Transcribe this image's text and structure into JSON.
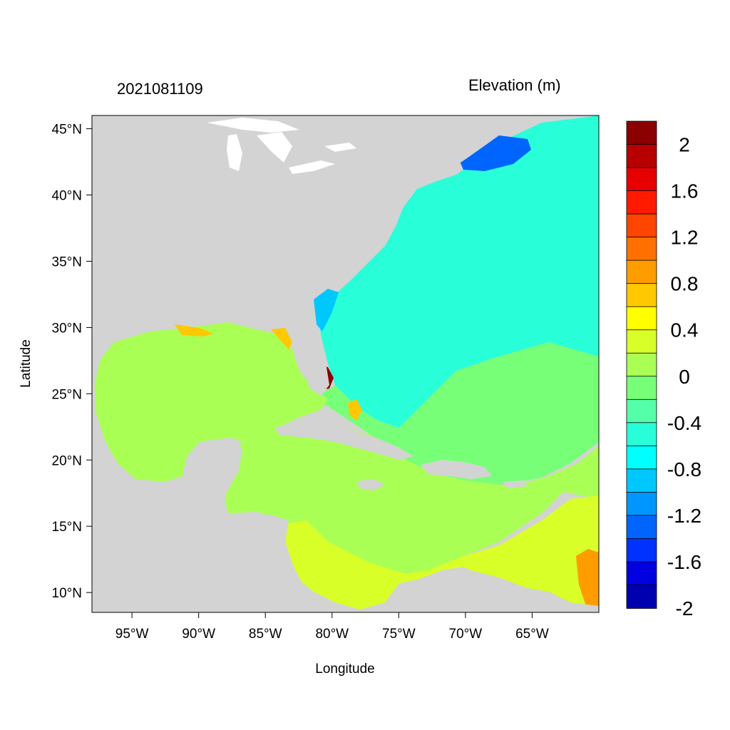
{
  "title_left": "2021081109",
  "title_right": "Elevation (m)",
  "axes": {
    "xlabel": "Longitude",
    "ylabel": "Latitude",
    "x_ticks": [
      "95°W",
      "90°W",
      "85°W",
      "80°W",
      "75°W",
      "70°W",
      "65°W"
    ],
    "y_ticks": [
      "45°N",
      "40°N",
      "35°N",
      "30°N",
      "25°N",
      "20°N",
      "15°N",
      "10°N"
    ],
    "x_range": [
      -98,
      -60
    ],
    "y_range": [
      8.5,
      46
    ]
  },
  "colorbar": {
    "labels": [
      "2",
      "1.6",
      "1.2",
      "0.8",
      "0.4",
      "0",
      "-0.4",
      "-0.8",
      "-1.2",
      "-1.6",
      "-2"
    ],
    "colors": [
      "#8b0000",
      "#b80000",
      "#e60000",
      "#ff1a00",
      "#ff4500",
      "#ff7000",
      "#ff9c00",
      "#ffc800",
      "#ffff00",
      "#d9ff28",
      "#aaff55",
      "#78ff78",
      "#55ffaa",
      "#28ffd9",
      "#00ffff",
      "#00c8ff",
      "#0096ff",
      "#0064ff",
      "#0032ff",
      "#0000e0",
      "#0000b0"
    ]
  },
  "colors": {
    "land": "#d3d3d3",
    "lakes": "#ffffff",
    "gulf_sea": "#aaff55",
    "atlantic": "#28ffd9",
    "central_atlantic": "#78ff78",
    "south_caribbean": "#d9ff28",
    "gulf_of_maine": "#0064ff",
    "florida_surge": "#8b0000"
  }
}
